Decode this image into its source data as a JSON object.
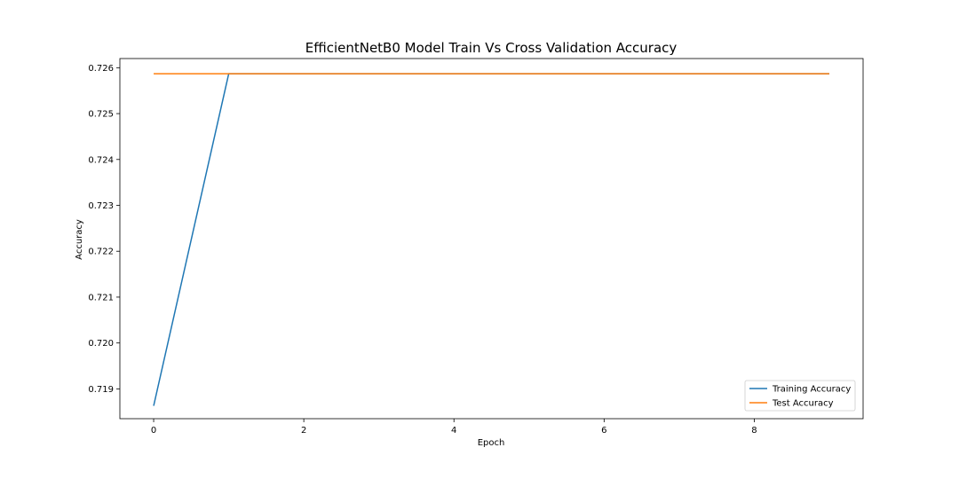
{
  "chart_data": {
    "type": "line",
    "title": "EfficientNetB0 Model Train Vs Cross Validation Accuracy",
    "xlabel": "Epoch",
    "ylabel": "Accuracy",
    "x": [
      0,
      1,
      2,
      3,
      4,
      5,
      6,
      7,
      8,
      9
    ],
    "xlim": [
      -0.45,
      9.45
    ],
    "ylim": [
      0.71835,
      0.7262
    ],
    "xticks": [
      0,
      2,
      4,
      6,
      8
    ],
    "xtick_labels": [
      "0",
      "2",
      "4",
      "6",
      "8"
    ],
    "yticks": [
      0.719,
      0.72,
      0.721,
      0.722,
      0.723,
      0.724,
      0.725,
      0.726
    ],
    "ytick_labels": [
      "0.719",
      "0.720",
      "0.721",
      "0.722",
      "0.723",
      "0.724",
      "0.725",
      "0.726"
    ],
    "grid": false,
    "legend_position": "lower-right",
    "series": [
      {
        "name": "Training Accuracy",
        "color": "#1f77b4",
        "values": [
          0.71863,
          0.72587,
          0.72587,
          0.72587,
          0.72587,
          0.72587,
          0.72587,
          0.72587,
          0.72587,
          0.72587
        ]
      },
      {
        "name": "Test Accuracy",
        "color": "#ff7f0e",
        "values": [
          0.72587,
          0.72587,
          0.72587,
          0.72587,
          0.72587,
          0.72587,
          0.72587,
          0.72587,
          0.72587,
          0.72587
        ]
      }
    ]
  }
}
